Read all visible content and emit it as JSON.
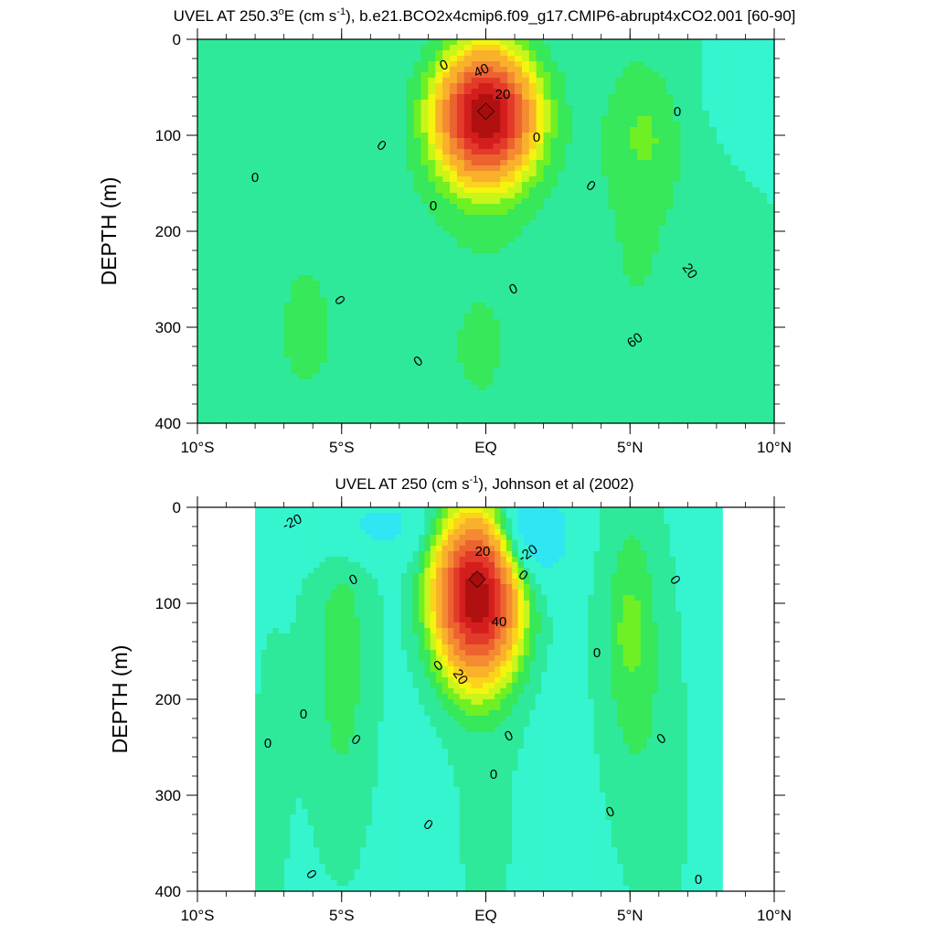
{
  "palette": [
    "#0a5cd6",
    "#1f8cf0",
    "#3dbcf7",
    "#2fe6f2",
    "#35f5cf",
    "#2fe99a",
    "#36e85a",
    "#6ef024",
    "#c8f51a",
    "#f4f50e",
    "#fbd21c",
    "#f9b02b",
    "#f48a32",
    "#ec6330",
    "#e33a2a",
    "#d41e1e",
    "#b01010"
  ],
  "chart_data": [
    {
      "type": "heatmap",
      "title_main": "UVEL AT 250.3",
      "title_deg": "o",
      "title_rest": "E (cm s",
      "title_sup": "-1",
      "title_tail": "), b.e21.BCO2x4cmip6.f09_g17.CMIP6-abrupt4xCO2.001 [60-90]",
      "ylabel": "DEPTH (m)",
      "xlim": [
        -10,
        10
      ],
      "ylim": [
        400,
        0
      ],
      "x_ticks": [
        "10°S",
        "5°S",
        "EQ",
        "5°N",
        "10°N"
      ],
      "y_ticks": [
        "0",
        "100",
        "200",
        "300",
        "400"
      ],
      "data_xrange": [
        -10,
        10
      ],
      "jet_core": {
        "lat": 0,
        "depth": 75,
        "value": 80
      },
      "contour_labels": [
        "0",
        "0",
        "0",
        "0",
        "0",
        "0",
        "0",
        "0",
        "0",
        "0",
        "20",
        "60",
        "40",
        "20"
      ],
      "fields": {
        "background": 0,
        "features": [
          {
            "lat": 0,
            "depth": 80,
            "value": 90,
            "sx": 1.1,
            "sy": 45
          },
          {
            "lat": -6.5,
            "depth": 300,
            "value": 5,
            "sx": 2.4,
            "sy": 200
          },
          {
            "lat": 0,
            "depth": 320,
            "value": 5,
            "sx": 2.5,
            "sy": 180
          },
          {
            "lat": 5.5,
            "depth": 160,
            "value": 5,
            "sx": 1.6,
            "sy": 220
          },
          {
            "lat": 5.5,
            "depth": 100,
            "value": 6,
            "sx": 0.8,
            "sy": 40
          },
          {
            "lat": -10,
            "depth": 30,
            "value": 3,
            "sx": 0.6,
            "sy": 30
          },
          {
            "lat": 9,
            "depth": 40,
            "value": -4,
            "sx": 1.5,
            "sy": 50
          }
        ]
      }
    },
    {
      "type": "heatmap",
      "title_main": "UVEL AT 250 (cm s",
      "title_sup": "-1",
      "title_tail": "), Johnson et al (2002)",
      "ylabel": "DEPTH (m)",
      "xlim": [
        -10,
        10
      ],
      "ylim": [
        400,
        0
      ],
      "x_ticks": [
        "10°S",
        "5°S",
        "EQ",
        "5°N",
        "10°N"
      ],
      "y_ticks": [
        "0",
        "100",
        "200",
        "300",
        "400"
      ],
      "data_xrange": [
        -8,
        8.2
      ],
      "jet_core": {
        "lat": -0.3,
        "depth": 75,
        "value": 80
      },
      "contour_labels": [
        "-20",
        "20",
        "0",
        "40",
        "20",
        "-20",
        "0",
        "0",
        "0",
        "0",
        "0",
        "0",
        "0",
        "0",
        "0",
        "0",
        "0",
        "0",
        "0",
        "0"
      ],
      "fields": {
        "background": -3,
        "features": [
          {
            "lat": -0.3,
            "depth": 90,
            "value": 92,
            "sx": 1.0,
            "sy": 60
          },
          {
            "lat": -5,
            "depth": 160,
            "value": 10,
            "sx": 0.9,
            "sy": 150
          },
          {
            "lat": 5,
            "depth": 120,
            "value": 10,
            "sx": 0.9,
            "sy": 120
          },
          {
            "lat": 5,
            "depth": 130,
            "value": 6,
            "sx": 0.3,
            "sy": 30
          },
          {
            "lat": 1.3,
            "depth": 30,
            "value": -24,
            "sx": 1.0,
            "sy": 35
          },
          {
            "lat": -4.3,
            "depth": 20,
            "value": -12,
            "sx": 1.8,
            "sy": 25
          },
          {
            "lat": 0,
            "depth": 320,
            "value": 4,
            "sx": 1.2,
            "sy": 150
          },
          {
            "lat": -7.5,
            "depth": 300,
            "value": 4,
            "sx": 0.7,
            "sy": 200
          },
          {
            "lat": 6,
            "depth": 320,
            "value": 4,
            "sx": 1.2,
            "sy": 150
          }
        ]
      }
    }
  ]
}
